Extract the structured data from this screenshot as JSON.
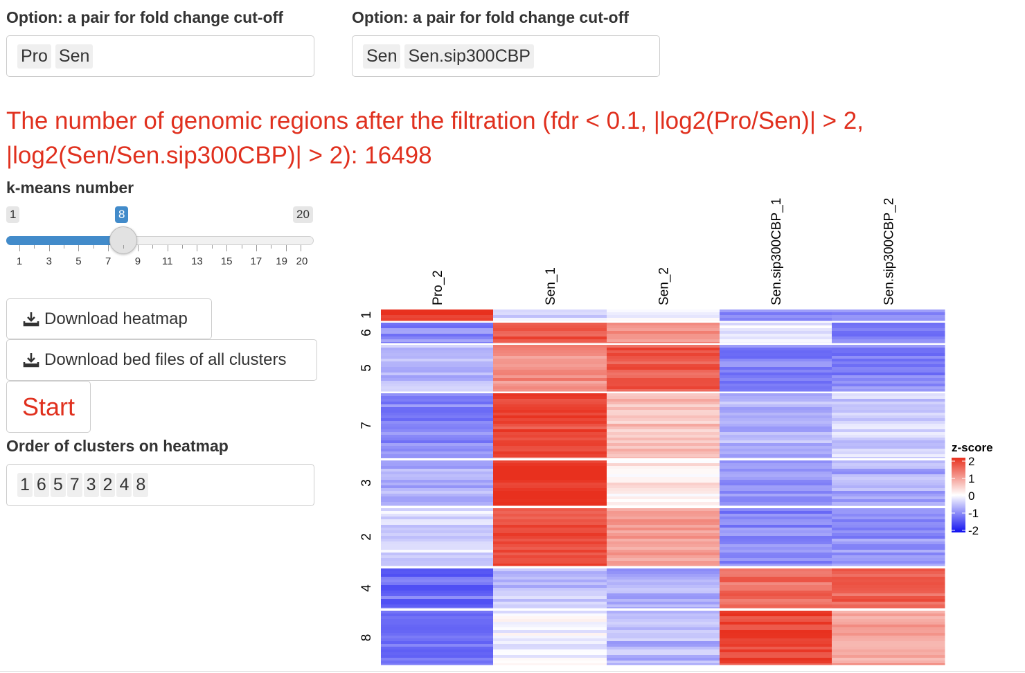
{
  "option1": {
    "label": "Option: a pair for fold change cut-off",
    "chips": [
      "Pro",
      "Sen"
    ]
  },
  "option2": {
    "label": "Option: a pair for fold change cut-off",
    "chips": [
      "Sen",
      "Sen.sip300CBP"
    ]
  },
  "filter_text": "The number of genomic regions after the filtration (fdr < 0.1, |log2(Pro/Sen)| > 2, |log2(Sen/Sen.sip300CBP)| > 2): 16498",
  "kmeans": {
    "label": "k-means number",
    "min": 1,
    "max": 20,
    "value": 8,
    "min_label": "1",
    "max_label": "20",
    "value_label": "8",
    "tick_labels": [
      "1",
      "3",
      "5",
      "7",
      "9",
      "11",
      "13",
      "15",
      "17",
      "19",
      "20"
    ]
  },
  "buttons": {
    "download_heatmap": "Download heatmap",
    "download_bed": "Download bed files of all clusters",
    "start": "Start"
  },
  "order": {
    "label": "Order of clusters on heatmap",
    "chips": [
      "1",
      "6",
      "5",
      "7",
      "3",
      "2",
      "4",
      "8"
    ]
  },
  "colors": {
    "accent_red": "#e0301e",
    "slider_blue": "#428bca",
    "high": "#e8301e",
    "mid": "#ffffff",
    "low": "#1010f0"
  },
  "chart_data": {
    "type": "heatmap",
    "columns": [
      "Pro_2",
      "Sen_1",
      "Sen_2",
      "Sen.sip300CBP_1",
      "Sen.sip300CBP_2"
    ],
    "clusters": [
      "1",
      "6",
      "5",
      "7",
      "3",
      "2",
      "4",
      "8"
    ],
    "cluster_means": [
      [
        2.0,
        -0.3,
        -0.1,
        -0.9,
        -0.9
      ],
      [
        -1.0,
        1.6,
        1.1,
        -0.2,
        -1.0
      ],
      [
        -0.6,
        1.1,
        1.6,
        -1.0,
        -1.0
      ],
      [
        -1.0,
        1.7,
        0.6,
        -0.6,
        -0.4
      ],
      [
        -0.7,
        2.0,
        0.2,
        -0.8,
        -0.7
      ],
      [
        -0.3,
        1.7,
        1.0,
        -1.0,
        -0.9
      ],
      [
        -1.2,
        -0.5,
        -0.7,
        1.4,
        1.5
      ],
      [
        -1.1,
        -0.1,
        -0.6,
        1.8,
        0.9
      ]
    ],
    "legend": {
      "title": "z-score",
      "ticks": [
        "2",
        "1",
        "0",
        "-1",
        "-2"
      ]
    },
    "zlim": [
      -2,
      2
    ]
  }
}
